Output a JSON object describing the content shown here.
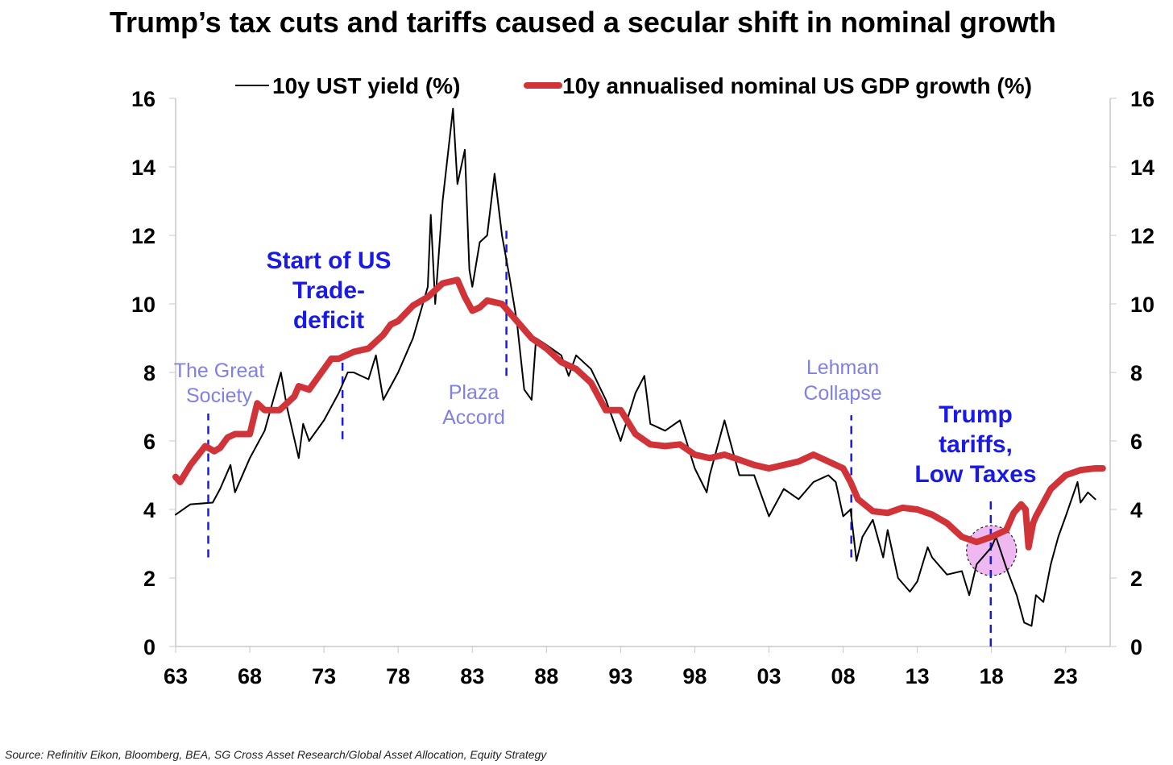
{
  "title": "Trump’s tax cuts and tariffs caused a secular shift in nominal growth",
  "source": "Source: Refinitiv Eikon,  Bloomberg, BEA, SG Cross Asset Research/Global Asset Allocation, Equity Strategy",
  "chart_data": {
    "type": "line",
    "title": "Trump’s tax cuts and tariffs caused a secular shift in nominal growth",
    "xlabel": "",
    "ylabel": "",
    "xlim": [
      1963,
      2026
    ],
    "ylim": [
      0,
      16
    ],
    "x_ticks": [
      1963,
      1968,
      1973,
      1978,
      1983,
      1988,
      1993,
      1998,
      2003,
      2008,
      2013,
      2018,
      2023
    ],
    "x_tick_labels": [
      "63",
      "68",
      "73",
      "78",
      "83",
      "88",
      "93",
      "98",
      "03",
      "08",
      "13",
      "18",
      "23"
    ],
    "y_ticks": [
      0,
      2,
      4,
      6,
      8,
      10,
      12,
      14,
      16
    ],
    "y_tick_labels": [
      "0",
      "2",
      "4",
      "6",
      "8",
      "10",
      "12",
      "14",
      "16"
    ],
    "grid": false,
    "legend_placement": "top",
    "colors": {
      "yield": "#000000",
      "gdp": "#d13438",
      "event_line": "#1a1ae6",
      "circle_fill": "#f0b8f0"
    },
    "series": [
      {
        "name": "10y UST yield (%)",
        "x": [
          1963,
          1964,
          1965.5,
          1966,
          1966.7,
          1967,
          1968,
          1969,
          1970.1,
          1970.5,
          1971.3,
          1971.6,
          1972,
          1973,
          1974,
          1974.6,
          1975,
          1976,
          1976.5,
          1977,
          1978,
          1979,
          1980,
          1980.2,
          1980.5,
          1981,
          1981.7,
          1982,
          1982.5,
          1982.8,
          1983,
          1983.5,
          1984,
          1984.5,
          1985,
          1985.5,
          1986,
          1986.5,
          1987,
          1987.3,
          1988,
          1989,
          1989.5,
          1990,
          1991,
          1992,
          1993,
          1994,
          1994.6,
          1995,
          1996,
          1997,
          1998,
          1998.8,
          1999,
          2000,
          2001,
          2002,
          2003,
          2004,
          2005,
          2006,
          2007,
          2007.5,
          2008,
          2008.5,
          2008.9,
          2009.3,
          2010,
          2010.7,
          2011,
          2011.7,
          2012.5,
          2013,
          2013.7,
          2014,
          2015,
          2016,
          2016.5,
          2017,
          2018,
          2018.3,
          2019,
          2019.7,
          2020.2,
          2020.7,
          2021,
          2021.5,
          2022,
          2022.5,
          2023,
          2023.8,
          2024,
          2024.5,
          2025
        ],
        "values": [
          3.85,
          4.15,
          4.2,
          4.6,
          5.3,
          4.5,
          5.5,
          6.3,
          8.0,
          7.0,
          5.5,
          6.5,
          6.0,
          6.6,
          7.4,
          8.0,
          8.0,
          7.8,
          8.5,
          7.2,
          8.0,
          9.0,
          10.5,
          12.6,
          10.0,
          13.0,
          15.7,
          13.5,
          14.5,
          11.0,
          10.5,
          11.8,
          12.0,
          13.8,
          12.0,
          10.8,
          9.5,
          7.5,
          7.2,
          9.0,
          8.8,
          8.5,
          7.9,
          8.5,
          8.1,
          7.2,
          6.0,
          7.4,
          7.9,
          6.5,
          6.3,
          6.6,
          5.2,
          4.5,
          5.0,
          6.6,
          5.0,
          5.0,
          3.8,
          4.6,
          4.3,
          4.8,
          5.0,
          4.8,
          3.8,
          4.0,
          2.5,
          3.2,
          3.7,
          2.6,
          3.4,
          2.0,
          1.6,
          1.9,
          2.9,
          2.6,
          2.1,
          2.2,
          1.5,
          2.4,
          2.9,
          3.2,
          2.3,
          1.5,
          0.7,
          0.6,
          1.5,
          1.3,
          2.4,
          3.2,
          3.8,
          4.8,
          4.2,
          4.5,
          4.3
        ]
      },
      {
        "name": "10y annualised nominal US GDP growth (%)",
        "x": [
          1963,
          1963.3,
          1964,
          1965,
          1965.6,
          1966,
          1966.5,
          1967,
          1968,
          1968.5,
          1969,
          1970,
          1971,
          1971.3,
          1972,
          1973,
          1973.5,
          1974,
          1975,
          1976,
          1977,
          1977.5,
          1978,
          1979,
          1980,
          1981,
          1982,
          1982.5,
          1983,
          1983.5,
          1984,
          1985,
          1986,
          1987,
          1988,
          1989,
          1990,
          1991,
          1992,
          1993,
          1994,
          1995,
          1996,
          1997,
          1998,
          1999,
          2000,
          2001,
          2002,
          2003,
          2004,
          2005,
          2006,
          2007,
          2008,
          2008.5,
          2009,
          2010,
          2011,
          2012,
          2013,
          2014,
          2015,
          2016,
          2017,
          2018,
          2019,
          2019.5,
          2020,
          2020.3,
          2020.5,
          2020.8,
          2021,
          2022,
          2023,
          2024,
          2025,
          2025.5
        ],
        "values": [
          4.95,
          4.8,
          5.3,
          5.85,
          5.7,
          5.8,
          6.1,
          6.2,
          6.2,
          7.1,
          6.9,
          6.9,
          7.3,
          7.6,
          7.5,
          8.1,
          8.4,
          8.4,
          8.6,
          8.7,
          9.1,
          9.4,
          9.5,
          9.95,
          10.2,
          10.6,
          10.7,
          10.2,
          9.8,
          9.9,
          10.1,
          10.0,
          9.5,
          9.0,
          8.7,
          8.3,
          8.1,
          7.7,
          6.9,
          6.9,
          6.2,
          5.9,
          5.85,
          5.9,
          5.6,
          5.5,
          5.6,
          5.45,
          5.3,
          5.2,
          5.3,
          5.4,
          5.6,
          5.4,
          5.2,
          4.8,
          4.3,
          3.95,
          3.9,
          4.05,
          4.0,
          3.85,
          3.6,
          3.2,
          3.05,
          3.2,
          3.4,
          3.9,
          4.15,
          4.0,
          2.9,
          3.6,
          3.8,
          4.6,
          5.0,
          5.15,
          5.2,
          5.2
        ]
      }
    ],
    "annotations": [
      {
        "text_lines": [
          "The Great",
          "Society"
        ],
        "style": "light",
        "event_year": 1965.2,
        "line_range": [
          2.6,
          6.8
        ]
      },
      {
        "text_lines": [
          "Start of US",
          "Trade-",
          "deficit"
        ],
        "style": "bold",
        "event_year": 1974.25,
        "line_range": [
          6.05,
          8.55
        ]
      },
      {
        "text_lines": [
          "Plaza",
          "Accord"
        ],
        "style": "light",
        "event_year": 1985.3,
        "line_range": [
          7.9,
          12.2
        ]
      },
      {
        "text_lines": [
          "Lehman",
          "Collapse"
        ],
        "style": "light",
        "event_year": 2008.55,
        "line_range": [
          2.6,
          6.75
        ]
      },
      {
        "text_lines": [
          "Trump",
          "tariffs,",
          "Low Taxes"
        ],
        "style": "bold",
        "event_year": 2017.95,
        "line_range": [
          0,
          4.3
        ]
      }
    ],
    "highlight_circle": {
      "center_year": 2018.0,
      "center_value": 2.8
    }
  }
}
